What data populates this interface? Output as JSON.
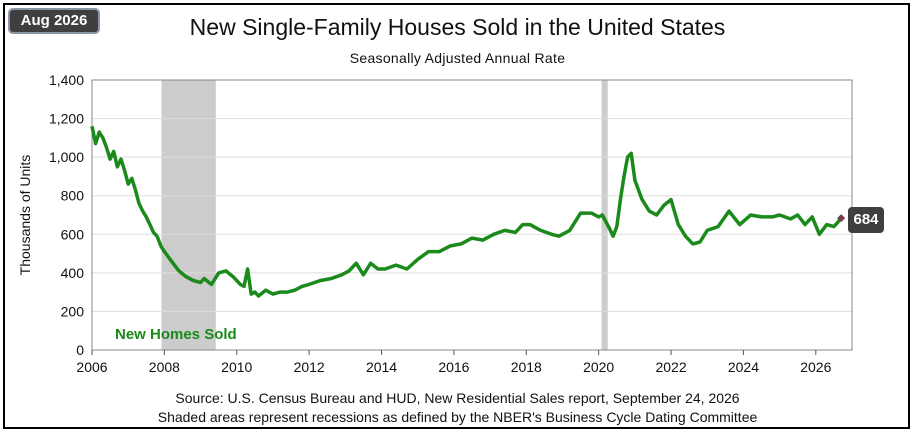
{
  "badge": {
    "date": "Aug 2026"
  },
  "header": {
    "title": "New Single-Family Houses Sold in the United States",
    "subtitle": "Seasonally Adjusted  Annual  Rate"
  },
  "footer": {
    "source": "Source:  U.S. Census Bureau and HUD, New Residential Sales report, September 24, 2026",
    "note": "Shaded areas represent recessions as defined by the NBER's Business Cycle Dating Committee"
  },
  "colors": {
    "series": "#1a8a1a",
    "recession": "#cccccc",
    "grid": "#dddddd",
    "marker": "#7b3b4b"
  },
  "chart_data": {
    "type": "line",
    "xlabel": "",
    "ylabel": "Thousands of Units",
    "ylim": [
      0,
      1400
    ],
    "xlim": [
      2006,
      2027
    ],
    "xticks": [
      "2006",
      "2008",
      "2010",
      "2012",
      "2014",
      "2016",
      "2018",
      "2020",
      "2022",
      "2024",
      "2026"
    ],
    "yticks": [
      "0",
      "200",
      "400",
      "600",
      "800",
      "1,000",
      "1,200",
      "1,400"
    ],
    "grid": true,
    "recessions": [
      [
        2007.92,
        2009.42
      ],
      [
        2020.08,
        2020.25
      ]
    ],
    "last_value_label": "684",
    "series": [
      {
        "name": "New Homes Sold",
        "x": [
          2006.0,
          2006.1,
          2006.2,
          2006.3,
          2006.4,
          2006.5,
          2006.6,
          2006.7,
          2006.8,
          2006.9,
          2007.0,
          2007.1,
          2007.2,
          2007.3,
          2007.4,
          2007.5,
          2007.6,
          2007.7,
          2007.8,
          2007.9,
          2008.0,
          2008.2,
          2008.4,
          2008.6,
          2008.8,
          2009.0,
          2009.1,
          2009.3,
          2009.5,
          2009.7,
          2009.9,
          2010.1,
          2010.2,
          2010.3,
          2010.4,
          2010.5,
          2010.6,
          2010.8,
          2011.0,
          2011.2,
          2011.4,
          2011.6,
          2011.8,
          2012.0,
          2012.3,
          2012.6,
          2012.9,
          2013.1,
          2013.3,
          2013.5,
          2013.7,
          2013.9,
          2014.1,
          2014.4,
          2014.7,
          2015.0,
          2015.3,
          2015.6,
          2015.9,
          2016.2,
          2016.5,
          2016.8,
          2017.1,
          2017.4,
          2017.7,
          2017.9,
          2018.1,
          2018.4,
          2018.7,
          2018.9,
          2019.2,
          2019.5,
          2019.8,
          2020.0,
          2020.1,
          2020.3,
          2020.4,
          2020.5,
          2020.6,
          2020.7,
          2020.8,
          2020.9,
          2021.0,
          2021.2,
          2021.4,
          2021.6,
          2021.8,
          2022.0,
          2022.2,
          2022.4,
          2022.6,
          2022.8,
          2023.0,
          2023.3,
          2023.6,
          2023.9,
          2024.2,
          2024.5,
          2024.8,
          2025.0,
          2025.3,
          2025.5,
          2025.7,
          2025.9,
          2026.1,
          2026.3,
          2026.5,
          2026.6,
          2026.7
        ],
        "values": [
          1160,
          1070,
          1130,
          1100,
          1050,
          990,
          1030,
          950,
          990,
          930,
          860,
          890,
          830,
          760,
          720,
          690,
          650,
          610,
          590,
          540,
          510,
          460,
          410,
          380,
          360,
          350,
          370,
          340,
          400,
          410,
          380,
          340,
          330,
          420,
          290,
          300,
          280,
          310,
          290,
          300,
          300,
          310,
          330,
          340,
          360,
          370,
          390,
          410,
          450,
          390,
          450,
          420,
          420,
          440,
          420,
          470,
          510,
          510,
          540,
          550,
          580,
          570,
          600,
          620,
          610,
          650,
          650,
          620,
          600,
          590,
          620,
          710,
          710,
          690,
          700,
          630,
          590,
          640,
          780,
          900,
          1000,
          1020,
          880,
          780,
          720,
          700,
          750,
          780,
          650,
          590,
          550,
          560,
          620,
          640,
          720,
          650,
          700,
          690,
          690,
          700,
          680,
          700,
          650,
          690,
          600,
          650,
          640,
          660,
          684
        ]
      }
    ]
  }
}
